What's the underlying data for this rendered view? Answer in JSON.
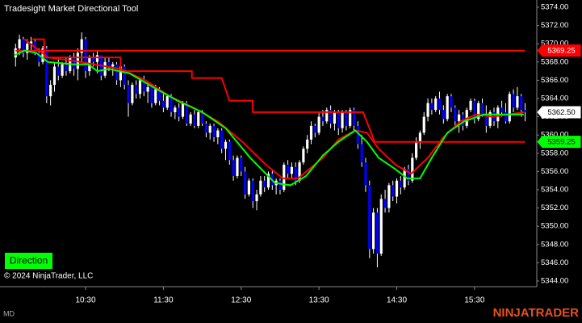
{
  "chart_data": {
    "type": "candlestick",
    "title": "Tradesight Market Directional Tool",
    "copyright": "© 2024 NinjaTrader, LLC",
    "button": "Direction",
    "footer_label": "MD",
    "logo": "NINJATRADER",
    "up_color": "#ffffff",
    "down_color": "#0000ff",
    "xlim": [
      564,
      978
    ],
    "xticks": [
      {
        "value": 630,
        "label": "10:30"
      },
      {
        "value": 690,
        "label": "11:30"
      },
      {
        "value": 750,
        "label": "12:30"
      },
      {
        "value": 810,
        "label": "13:30"
      },
      {
        "value": 870,
        "label": "14:30"
      },
      {
        "value": 930,
        "label": "15:30"
      }
    ],
    "ylim": [
      5344,
      5374
    ],
    "yticks": [
      {
        "value": 5344,
        "label": "5344.00"
      },
      {
        "value": 5346,
        "label": "5346.00"
      },
      {
        "value": 5348,
        "label": "5348.00"
      },
      {
        "value": 5350,
        "label": "5350.00"
      },
      {
        "value": 5352,
        "label": "5352.00"
      },
      {
        "value": 5354,
        "label": "5354.00"
      },
      {
        "value": 5356,
        "label": "5356.00"
      },
      {
        "value": 5358,
        "label": "5358.00"
      },
      {
        "value": 5360,
        "label": "5360.00"
      },
      {
        "value": 5362,
        "label": "5362.00"
      },
      {
        "value": 5364,
        "label": "5364.00"
      },
      {
        "value": 5366,
        "label": "5366.00"
      },
      {
        "value": 5368,
        "label": "5368.00"
      },
      {
        "value": 5370,
        "label": "5370.00"
      },
      {
        "value": 5372,
        "label": "5372.00"
      },
      {
        "value": 5374,
        "label": "5374.00"
      }
    ],
    "x": [
      576,
      579,
      582,
      585,
      588,
      591,
      594,
      597,
      600,
      603,
      606,
      609,
      612,
      615,
      618,
      621,
      624,
      627,
      630,
      633,
      636,
      639,
      642,
      645,
      648,
      651,
      654,
      657,
      660,
      663,
      666,
      669,
      672,
      675,
      678,
      681,
      684,
      687,
      690,
      693,
      696,
      699,
      702,
      705,
      708,
      711,
      714,
      717,
      720,
      723,
      726,
      729,
      732,
      735,
      738,
      741,
      744,
      747,
      750,
      753,
      756,
      759,
      762,
      765,
      768,
      771,
      774,
      777,
      780,
      783,
      786,
      789,
      792,
      795,
      798,
      801,
      804,
      807,
      810,
      813,
      816,
      819,
      822,
      825,
      828,
      831,
      834,
      837,
      840,
      843,
      846,
      849,
      852,
      855,
      858,
      861,
      864,
      867,
      870,
      873,
      876,
      879,
      882,
      885,
      888,
      891,
      894,
      897,
      900,
      903,
      906,
      909,
      912,
      915,
      918,
      921,
      924,
      927,
      930,
      933,
      936,
      939,
      942,
      945,
      948,
      951,
      954,
      957,
      960,
      963,
      966,
      969
    ],
    "ohlc": [
      [
        5368.5,
        5370,
        5367.5,
        5369.5
      ],
      [
        5369.5,
        5371,
        5368.75,
        5370.5
      ],
      [
        5370.5,
        5370.75,
        5368.5,
        5369
      ],
      [
        5369,
        5370.5,
        5368.25,
        5370
      ],
      [
        5370,
        5370.75,
        5369.25,
        5370.25
      ],
      [
        5370.25,
        5370.5,
        5368.75,
        5369
      ],
      [
        5369,
        5369.5,
        5367.5,
        5368
      ],
      [
        5368,
        5369.75,
        5367.75,
        5369.5
      ],
      [
        5369.5,
        5369.75,
        5363.5,
        5364.25
      ],
      [
        5364.25,
        5366,
        5363.25,
        5365.5
      ],
      [
        5365.5,
        5368,
        5364.75,
        5367.5
      ],
      [
        5367.5,
        5368.25,
        5366,
        5366.5
      ],
      [
        5366.5,
        5368,
        5366.25,
        5367.75
      ],
      [
        5367.75,
        5368.5,
        5366.5,
        5367
      ],
      [
        5367,
        5368.75,
        5366.75,
        5368.5
      ],
      [
        5368.5,
        5369,
        5366.5,
        5367.25
      ],
      [
        5367.25,
        5369.5,
        5366,
        5369
      ],
      [
        5369,
        5371.25,
        5368,
        5370.5
      ],
      [
        5370.5,
        5370.75,
        5366.25,
        5367
      ],
      [
        5367,
        5368.75,
        5366.5,
        5368.5
      ],
      [
        5368.5,
        5369,
        5367.5,
        5368
      ],
      [
        5368,
        5369.25,
        5366.75,
        5368.75
      ],
      [
        5368.75,
        5368.75,
        5366,
        5366.5
      ],
      [
        5366.5,
        5368.5,
        5366.25,
        5368
      ],
      [
        5368,
        5368.5,
        5367,
        5367.5
      ],
      [
        5367.5,
        5368,
        5366.5,
        5367.75
      ],
      [
        5367.75,
        5368,
        5365.5,
        5366
      ],
      [
        5366,
        5367.75,
        5365.25,
        5367.5
      ],
      [
        5367.5,
        5367.75,
        5365,
        5365.5
      ],
      [
        5365.5,
        5366,
        5362,
        5363.5
      ],
      [
        5363.5,
        5365.75,
        5363.25,
        5365.5
      ],
      [
        5365.5,
        5366,
        5364,
        5364.5
      ],
      [
        5364.5,
        5366.25,
        5364,
        5366
      ],
      [
        5366,
        5366.5,
        5364.25,
        5364.75
      ],
      [
        5364.75,
        5365.75,
        5363.5,
        5365.25
      ],
      [
        5365.25,
        5365.5,
        5363,
        5363.5
      ],
      [
        5363.5,
        5365.5,
        5363.25,
        5365
      ],
      [
        5365,
        5365.25,
        5363.25,
        5363.75
      ],
      [
        5363.75,
        5364.5,
        5362.5,
        5363
      ],
      [
        5363,
        5364.5,
        5362.75,
        5364.25
      ],
      [
        5364.25,
        5364.5,
        5362,
        5362.5
      ],
      [
        5362.5,
        5363.25,
        5361.75,
        5363
      ],
      [
        5363,
        5363.5,
        5361.5,
        5362
      ],
      [
        5362,
        5363.75,
        5361.75,
        5363.5
      ],
      [
        5363.5,
        5363.75,
        5361,
        5361.25
      ],
      [
        5361.25,
        5362.5,
        5361,
        5362.25
      ],
      [
        5362.25,
        5362.75,
        5360.75,
        5361
      ],
      [
        5361,
        5362.75,
        5360.75,
        5362.5
      ],
      [
        5362.5,
        5362.75,
        5361,
        5361.25
      ],
      [
        5361.25,
        5361.5,
        5359.75,
        5360.25
      ],
      [
        5360.25,
        5361.25,
        5359.5,
        5361
      ],
      [
        5361,
        5361.25,
        5359.25,
        5359.75
      ],
      [
        5359.75,
        5360.75,
        5359,
        5360.5
      ],
      [
        5360.5,
        5360.75,
        5358,
        5358.5
      ],
      [
        5358.5,
        5359.5,
        5357.25,
        5359.25
      ],
      [
        5359.25,
        5359.5,
        5356.75,
        5357.25
      ],
      [
        5357.25,
        5357.75,
        5355,
        5355.5
      ],
      [
        5355.5,
        5357.75,
        5355.25,
        5357.5
      ],
      [
        5357.5,
        5357.75,
        5355.5,
        5356
      ],
      [
        5356,
        5356.5,
        5353,
        5353.5
      ],
      [
        5353.5,
        5355.25,
        5353.25,
        5355
      ],
      [
        5355,
        5355.25,
        5352,
        5352.75
      ],
      [
        5352.75,
        5354,
        5351.75,
        5353.5
      ],
      [
        5353.5,
        5355.5,
        5353.25,
        5355
      ],
      [
        5355,
        5355.5,
        5353.75,
        5354.25
      ],
      [
        5354.25,
        5356,
        5354,
        5355.75
      ],
      [
        5355.75,
        5356.25,
        5354,
        5354.5
      ],
      [
        5354.5,
        5355.25,
        5353.5,
        5355
      ],
      [
        5355,
        5355.25,
        5353.5,
        5354
      ],
      [
        5354,
        5357,
        5353.75,
        5356.75
      ],
      [
        5356.75,
        5357.25,
        5355.25,
        5355.75
      ],
      [
        5355.75,
        5357,
        5355.25,
        5356.5
      ],
      [
        5356.5,
        5357,
        5354.5,
        5355
      ],
      [
        5355,
        5357.25,
        5354.75,
        5357
      ],
      [
        5357,
        5358.75,
        5356.75,
        5358.5
      ],
      [
        5358.5,
        5360,
        5358,
        5359.5
      ],
      [
        5359.5,
        5361.5,
        5359,
        5361
      ],
      [
        5361,
        5361.25,
        5359.75,
        5360.25
      ],
      [
        5360.25,
        5362.5,
        5360,
        5362
      ],
      [
        5362,
        5362.75,
        5361,
        5361.5
      ],
      [
        5361.5,
        5363,
        5361.25,
        5362.75
      ],
      [
        5362.75,
        5363.25,
        5360.75,
        5361.25
      ],
      [
        5361.25,
        5362.75,
        5360.5,
        5362.5
      ],
      [
        5362.5,
        5362.75,
        5360,
        5360.75
      ],
      [
        5360.75,
        5362.75,
        5360.25,
        5362.5
      ],
      [
        5362.5,
        5362.75,
        5360.5,
        5361
      ],
      [
        5361,
        5363,
        5360.75,
        5362.75
      ],
      [
        5362.75,
        5363,
        5360.5,
        5361
      ],
      [
        5361,
        5361.5,
        5358.5,
        5359
      ],
      [
        5359,
        5360,
        5356.5,
        5357
      ],
      [
        5357,
        5357.5,
        5353.75,
        5354.5
      ],
      [
        5354.5,
        5355,
        5346.5,
        5347.5
      ],
      [
        5347.5,
        5352,
        5347,
        5351.5
      ],
      [
        5351.5,
        5352,
        5345.5,
        5347
      ],
      [
        5347,
        5353.5,
        5346.75,
        5353
      ],
      [
        5353,
        5354,
        5351.5,
        5352
      ],
      [
        5352,
        5354.75,
        5351.5,
        5354.5
      ],
      [
        5354.5,
        5355,
        5352.75,
        5353.25
      ],
      [
        5353.25,
        5355.25,
        5352.5,
        5355
      ],
      [
        5355,
        5355.5,
        5353.5,
        5354.25
      ],
      [
        5354.25,
        5356.5,
        5354,
        5356.25
      ],
      [
        5356.25,
        5356.75,
        5354.5,
        5355
      ],
      [
        5355,
        5358,
        5354.75,
        5357.5
      ],
      [
        5357.5,
        5359.75,
        5357.25,
        5359.25
      ],
      [
        5359.25,
        5360.5,
        5358.5,
        5360.25
      ],
      [
        5360.25,
        5362.5,
        5360,
        5362
      ],
      [
        5362,
        5364,
        5361.5,
        5363.5
      ],
      [
        5363.5,
        5364,
        5362.25,
        5362.75
      ],
      [
        5362.75,
        5364.25,
        5362.5,
        5364
      ],
      [
        5364,
        5364.75,
        5362.25,
        5362.75
      ],
      [
        5362.75,
        5363.25,
        5361.25,
        5361.75
      ],
      [
        5361.75,
        5364.5,
        5361.5,
        5364.25
      ],
      [
        5364.25,
        5364.5,
        5362.5,
        5363
      ],
      [
        5363,
        5363.25,
        5361,
        5361.5
      ],
      [
        5361.5,
        5362.75,
        5360.25,
        5362.25
      ],
      [
        5362.25,
        5362.5,
        5360.5,
        5361
      ],
      [
        5361,
        5363,
        5360.75,
        5362.75
      ],
      [
        5362.75,
        5364,
        5362.5,
        5363.75
      ],
      [
        5363.75,
        5364,
        5361.25,
        5361.75
      ],
      [
        5361.75,
        5363.75,
        5361.5,
        5363.5
      ],
      [
        5363.5,
        5364,
        5362,
        5362.25
      ],
      [
        5362.25,
        5363.25,
        5360.25,
        5361
      ],
      [
        5361,
        5362.75,
        5360.75,
        5362.5
      ],
      [
        5362.5,
        5363,
        5361,
        5361.5
      ],
      [
        5361.5,
        5363.25,
        5360.75,
        5363
      ],
      [
        5363,
        5363.75,
        5362,
        5362.5
      ],
      [
        5362.5,
        5363.5,
        5361.25,
        5361.5
      ],
      [
        5361.5,
        5364.75,
        5361.25,
        5364.5
      ],
      [
        5364.5,
        5365,
        5362.5,
        5363
      ],
      [
        5363,
        5365.25,
        5362.75,
        5364.25
      ],
      [
        5364.25,
        5364.5,
        5362,
        5362.75
      ],
      [
        5362.75,
        5363.5,
        5361.5,
        5362.5
      ]
    ],
    "lines": [
      {
        "color": "#ff0000",
        "x": [
          576,
          969
        ],
        "values": [
          5369.25,
          5369.25
        ]
      },
      {
        "color": "#ff0000",
        "x": [
          589,
          598,
          598,
          657,
          657,
          712,
          712,
          735,
          741,
          759,
          759,
          844,
          853,
          969
        ],
        "values": [
          5370.5,
          5370.5,
          5368.5,
          5368.5,
          5367,
          5367,
          5366.25,
          5366.25,
          5363.75,
          5363.75,
          5362.5,
          5362.5,
          5359.25,
          5359.25
        ]
      },
      {
        "color": "#ff0000",
        "x": [
          583,
          601,
          626,
          657,
          676,
          695,
          713,
          732,
          751,
          769,
          782,
          794,
          813,
          825,
          838,
          847,
          856,
          869,
          881,
          894,
          906,
          919,
          931,
          944,
          956,
          968
        ],
        "values": [
          5370.5,
          5368.5,
          5368,
          5367.25,
          5366,
          5364.25,
          5363,
          5361.5,
          5359.25,
          5356.75,
          5355.25,
          5355.25,
          5357.5,
          5359.5,
          5360.5,
          5360.25,
          5358.5,
          5356.75,
          5355.75,
          5357.5,
          5359.75,
          5361.5,
          5362.25,
          5362,
          5362.25,
          5362.5
        ]
      },
      {
        "color": "#00ff00",
        "x": [
          575,
          583,
          592,
          601,
          620,
          632,
          639,
          648,
          664,
          682,
          701,
          720,
          738,
          757,
          776,
          788,
          800,
          813,
          825,
          838,
          847,
          856,
          869,
          878,
          888,
          897,
          909,
          922,
          937,
          956,
          968
        ],
        "values": [
          5368.75,
          5369.25,
          5369,
          5368,
          5367.75,
          5367.75,
          5367,
          5367.25,
          5366.75,
          5365.25,
          5363.75,
          5362.5,
          5360.75,
          5357.5,
          5354.75,
          5354.5,
          5355.5,
          5357.75,
          5359.25,
          5360.5,
          5359.25,
          5357.5,
          5356.25,
          5355.25,
          5355.25,
          5357.5,
          5360.25,
          5361.5,
          5362.25,
          5362.25,
          5362.25
        ]
      }
    ],
    "markers": [
      {
        "value": 5369.25,
        "color": "#ff0000",
        "text_color": "#ffffff"
      },
      {
        "value": 5362.5,
        "label": "5362.50",
        "color": "#ffffff",
        "text_color": "#000000"
      },
      {
        "value": 5359.25,
        "color": "#00ff00",
        "text_color": "#000000"
      }
    ]
  }
}
